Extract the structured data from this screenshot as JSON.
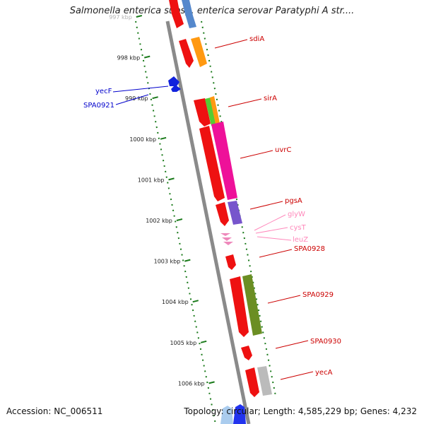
{
  "title": "Salmonella enterica subsp. enterica serovar Paratyphi A str....",
  "accession": "Accession: NC_006511",
  "topology": "Topology: circular; Length: 4,585,229 bp; Genes: 4,232",
  "colors": {
    "forward_label": "#cc0000",
    "reverse_label": "#0000cc",
    "rna_label": "#ff88bb",
    "ruler": "#1a7a1a",
    "backbone": "#888888"
  },
  "scale_ticks": [
    "997 kbp",
    "998 kbp",
    "999 kbp",
    "1000 kbp",
    "1001 kbp",
    "1002 kbp",
    "1003 kbp",
    "1004 kbp",
    "1005 kbp",
    "1006 kbp"
  ],
  "gene_labels": [
    {
      "name": "sdiA",
      "strand": "forward"
    },
    {
      "name": "sirA",
      "strand": "forward"
    },
    {
      "name": "uvrC",
      "strand": "forward"
    },
    {
      "name": "pgsA",
      "strand": "forward"
    },
    {
      "name": "glyW",
      "strand": "rna"
    },
    {
      "name": "cysT",
      "strand": "rna"
    },
    {
      "name": "leuZ",
      "strand": "rna"
    },
    {
      "name": "SPA0928",
      "strand": "forward"
    },
    {
      "name": "SPA0929",
      "strand": "forward"
    },
    {
      "name": "SPA0930",
      "strand": "forward"
    },
    {
      "name": "yecA",
      "strand": "forward"
    },
    {
      "name": "yecF",
      "strand": "reverse"
    },
    {
      "name": "SPA0921",
      "strand": "reverse"
    }
  ]
}
